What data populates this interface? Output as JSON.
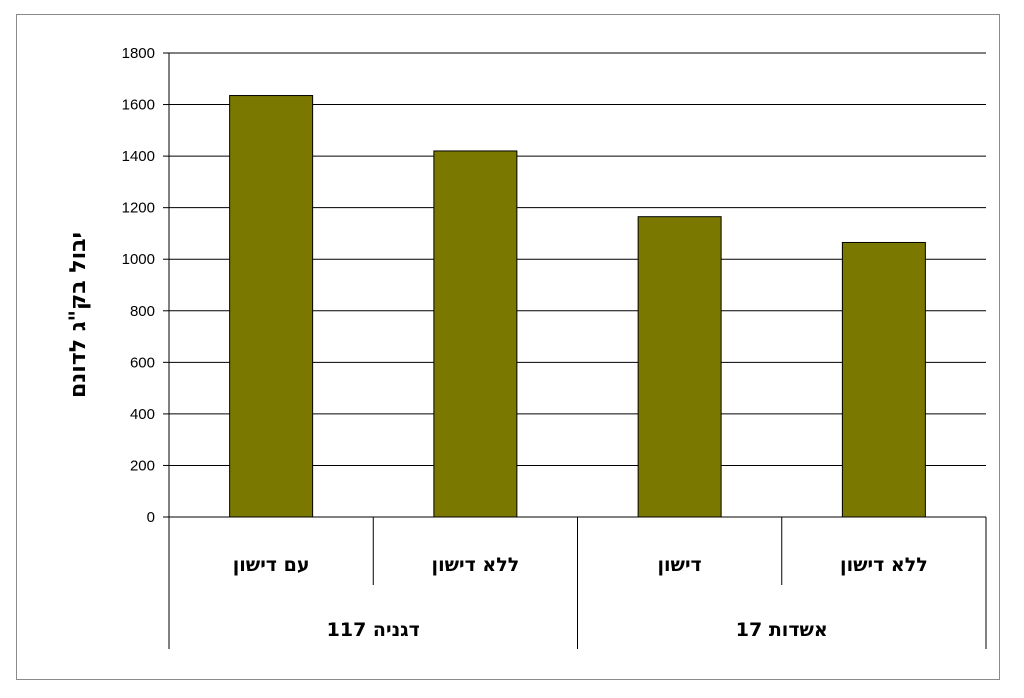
{
  "chart_data": {
    "type": "bar",
    "title": "",
    "xlabel": "",
    "ylabel": "יבול בק\"ג לדונם",
    "ylim": [
      0,
      1800
    ],
    "yticks": [
      0,
      200,
      400,
      600,
      800,
      1000,
      1200,
      1400,
      1600,
      1800
    ],
    "grid": true,
    "legend": "none",
    "bar_color": "#7b7800",
    "categories": [
      "עם דישון",
      "ללא דישון",
      "דישון",
      "ללא דישון"
    ],
    "groups": [
      {
        "label": "דגניה 117",
        "categories": [
          "עם דישון",
          "ללא דישון"
        ]
      },
      {
        "label": "אשדות 17",
        "categories": [
          "דישון",
          "ללא דישון"
        ]
      }
    ],
    "values": [
      1635,
      1420,
      1165,
      1065
    ]
  }
}
